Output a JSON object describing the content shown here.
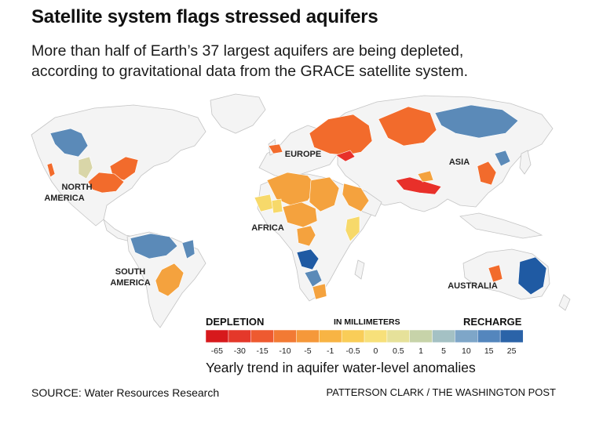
{
  "header": {
    "title": "Satellite system flags stressed aquifers",
    "subtitle_line1": "More than half of Earth’s 37 largest aquifers are being depleted,",
    "subtitle_line2": "according to gravitational data from the GRACE satellite system."
  },
  "map": {
    "labels": {
      "north_america": [
        "NORTH",
        "AMERICA"
      ],
      "south_america": [
        "SOUTH",
        "AMERICA"
      ],
      "europe": "EUROPE",
      "africa": "AFRICA",
      "asia": "ASIA",
      "australia": "AUSTRALIA"
    },
    "colors": {
      "land": "#f4f4f4",
      "land_stroke": "#c9c9c9",
      "depletion_strong": "#e8302a",
      "depletion": "#f26b2c",
      "depletion_mild": "#f4a23e",
      "neutral_low": "#f7d96a",
      "neutral": "#d9d6a8",
      "recharge_mild": "#a9c3cf",
      "recharge": "#5b8ab8",
      "recharge_strong": "#1f5aa3"
    }
  },
  "legend": {
    "depletion_label": "DEPLETION",
    "recharge_label": "RECHARGE",
    "unit_label": "IN MILLIMETERS",
    "ticks": [
      "-65",
      "-30",
      "-15",
      "-10",
      "-5",
      "-1",
      "-0.5",
      "0",
      "0.5",
      "1",
      "5",
      "10",
      "15",
      "25"
    ],
    "colors": [
      "#d7191c",
      "#e4382a",
      "#ee5a30",
      "#f27a34",
      "#f5983a",
      "#f8b444",
      "#f9cd58",
      "#f7e07a",
      "#e6e19a",
      "#c7d3a9",
      "#a4c1c4",
      "#7ea6c8",
      "#5486bd",
      "#2b63a8"
    ],
    "caption": "Yearly trend in aquifer water-level anomalies"
  },
  "footer": {
    "source": "SOURCE: Water Resources Research",
    "credit": "PATTERSON CLARK / THE WASHINGTON POST"
  }
}
